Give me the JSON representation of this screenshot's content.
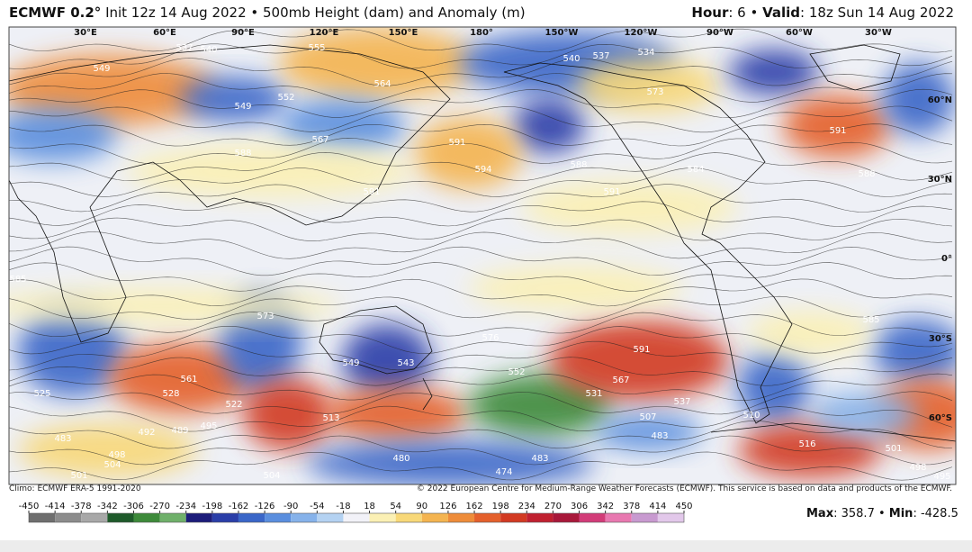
{
  "header": {
    "model": "ECMWF 0.2°",
    "title": "Init 12z 14 Aug 2022 • 500mb Height (dam) and Anomaly (m)",
    "hour_label": "Hour",
    "hour": ": 6 •",
    "valid_label": "Valid",
    "valid": ": 18z Sun 14 Aug 2022"
  },
  "map": {
    "longitude_labels": [
      "30°E",
      "60°E",
      "90°E",
      "120°E",
      "150°E",
      "180°",
      "150°W",
      "120°W",
      "90°W",
      "60°W",
      "30°W"
    ],
    "latitude_labels": [
      "60°N",
      "30°N",
      "0°",
      "30°S",
      "60°S"
    ],
    "contour_labels": [
      "537",
      "540",
      "549",
      "555",
      "564",
      "549",
      "552",
      "567",
      "588",
      "591",
      "594",
      "591",
      "588",
      "591",
      "537",
      "534",
      "540",
      "573",
      "584",
      "591",
      "588",
      "585",
      "573",
      "561",
      "549",
      "543",
      "576",
      "591",
      "567",
      "552",
      "537",
      "507",
      "510",
      "483",
      "489",
      "492",
      "495",
      "498",
      "504",
      "501",
      "480",
      "474",
      "483",
      "504",
      "516",
      "501",
      "498",
      "495",
      "585",
      "525",
      "528",
      "522",
      "513",
      "531",
      "483"
    ]
  },
  "footer": {
    "climo": "Climo: ECMWF ERA-5 1991-2020",
    "copyright": "© 2022 European Centre for Medium-Range Weather Forecasts (ECMWF). This service is based on data and products of the ECMWF.",
    "max_label": "Max",
    "max": ": 358.7 •",
    "min_label": "Min",
    "min": ": -428.5"
  },
  "colorbar": {
    "ticks": [
      -450,
      -414,
      -378,
      -342,
      -306,
      -270,
      -234,
      -198,
      -162,
      -126,
      -90,
      -54,
      -18,
      18,
      54,
      90,
      126,
      162,
      198,
      234,
      270,
      306,
      342,
      378,
      414,
      450
    ],
    "colors": [
      "#6e6e6e",
      "#8c8c8c",
      "#a8a8a8",
      "#1e5a2a",
      "#3d8a3a",
      "#6fb06a",
      "#1c1c7a",
      "#2a3ea8",
      "#3a66c8",
      "#5a8ede",
      "#86b2ea",
      "#b4d2f2",
      "#f2f2f8",
      "#fbf0b4",
      "#f8d878",
      "#f4b450",
      "#ee8c3a",
      "#e4602c",
      "#d23a22",
      "#c02030",
      "#a8183a",
      "#d23c78",
      "#e878b0",
      "#c89ad0",
      "#e2c8ea"
    ]
  }
}
